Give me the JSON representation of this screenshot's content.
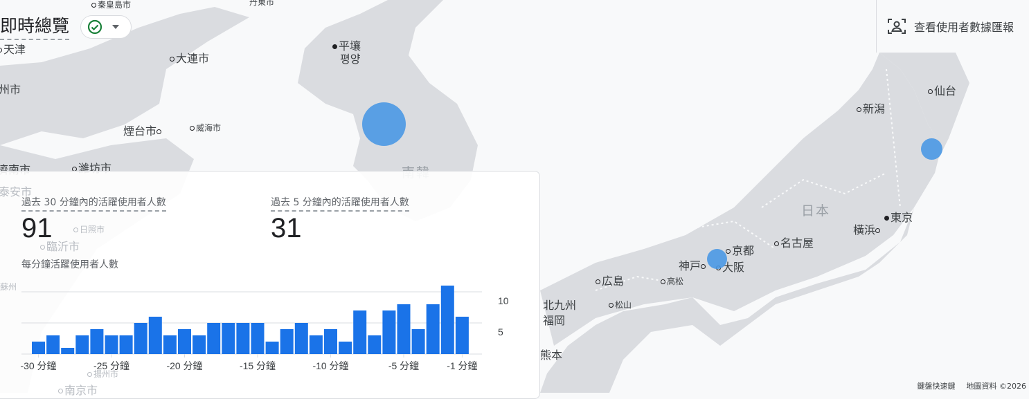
{
  "header": {
    "title": "即時總覽",
    "status_icon": "check-circle-icon",
    "dropdown_icon": "caret-down-icon",
    "user_report_button": "查看使用者數據匯報",
    "user_report_icon": "user-frame-icon"
  },
  "map": {
    "cities": [
      "秦皇島市",
      "丹東市",
      "天津",
      "大連市",
      "平壤",
      "평양",
      "州市",
      "煙台市",
      "威海市",
      "濟南市",
      "濰坊市",
      "泰安市",
      "仙台",
      "新潟",
      "東京",
      "橫浜",
      "名古屋",
      "京都",
      "神戸",
      "大阪",
      "広島",
      "高松",
      "松山",
      "北九州",
      "福岡",
      "熊本",
      "日照市",
      "臨沂市",
      "蘇州",
      "南京市",
      "揚州市"
    ],
    "countries": [
      "南韓",
      "日本"
    ]
  },
  "card": {
    "metric1_label": "過去 30 分鐘內的活躍使用者人數",
    "metric1_value": "91",
    "metric2_label": "過去 5 分鐘內的活躍使用者人數",
    "metric2_value": "31",
    "chart_title": "每分鐘活躍使用者人數"
  },
  "chart_data": {
    "type": "bar",
    "values": [
      2,
      3,
      1,
      3,
      4,
      3,
      3,
      5,
      6,
      3,
      4,
      3,
      5,
      5,
      5,
      5,
      2,
      4,
      5,
      3,
      4,
      2,
      7,
      3,
      7,
      8,
      4,
      8,
      11,
      6
    ],
    "x_tick_labels": [
      "-30 分鐘",
      "-25 分鐘",
      "-20 分鐘",
      "-15 分鐘",
      "-10 分鐘",
      "-5 分鐘",
      "-1 分鐘"
    ],
    "y_tick_labels": [
      "5",
      "10"
    ],
    "ylim": [
      0,
      12
    ],
    "grid": true,
    "color": "#1a73e8"
  },
  "footer": {
    "shortcuts": "鍵盤快速鍵",
    "map_data": "地圖資料 ©2026"
  }
}
